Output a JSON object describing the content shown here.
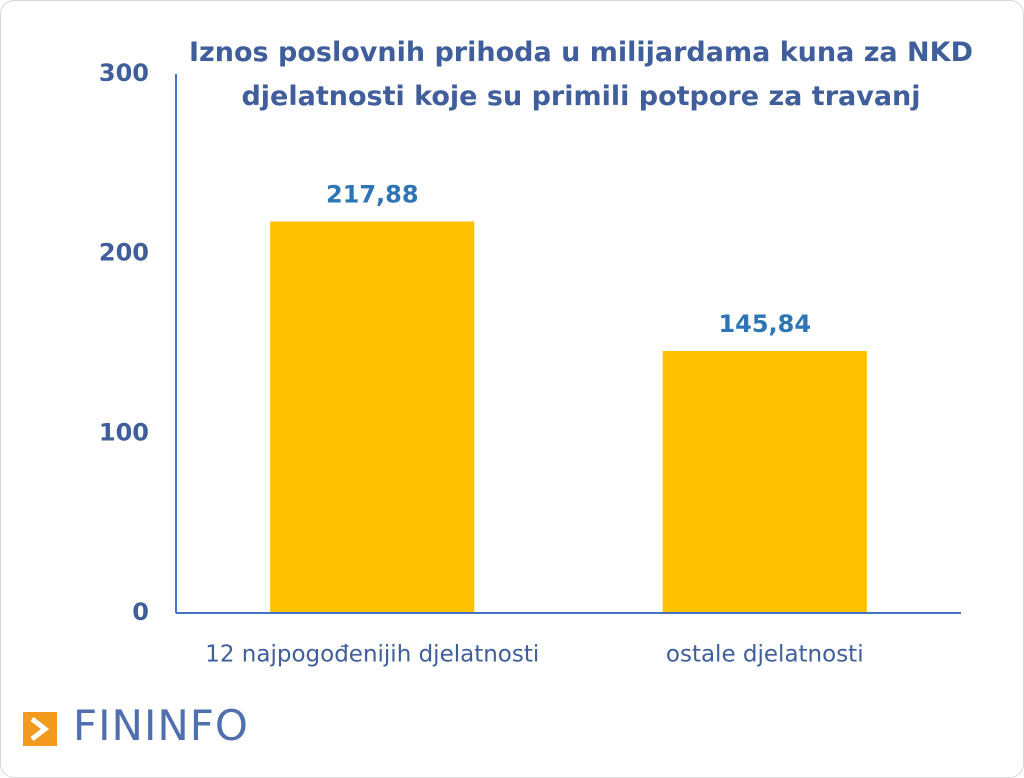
{
  "chart_data": {
    "type": "bar",
    "title": "Iznos poslovnih prihoda u milijardama kuna za NKD djelatnosti koje su primili potpore za travanj",
    "categories": [
      "12 najpogođenijih djelatnosti",
      "ostale djelatnosti"
    ],
    "values": [
      217.88,
      145.84
    ],
    "value_labels": [
      "217,88",
      "145,84"
    ],
    "color": "#ffc000",
    "ylim": [
      0,
      300
    ],
    "yticks": [
      0,
      100,
      200,
      300
    ],
    "grid": false
  },
  "logo": "FININFO"
}
